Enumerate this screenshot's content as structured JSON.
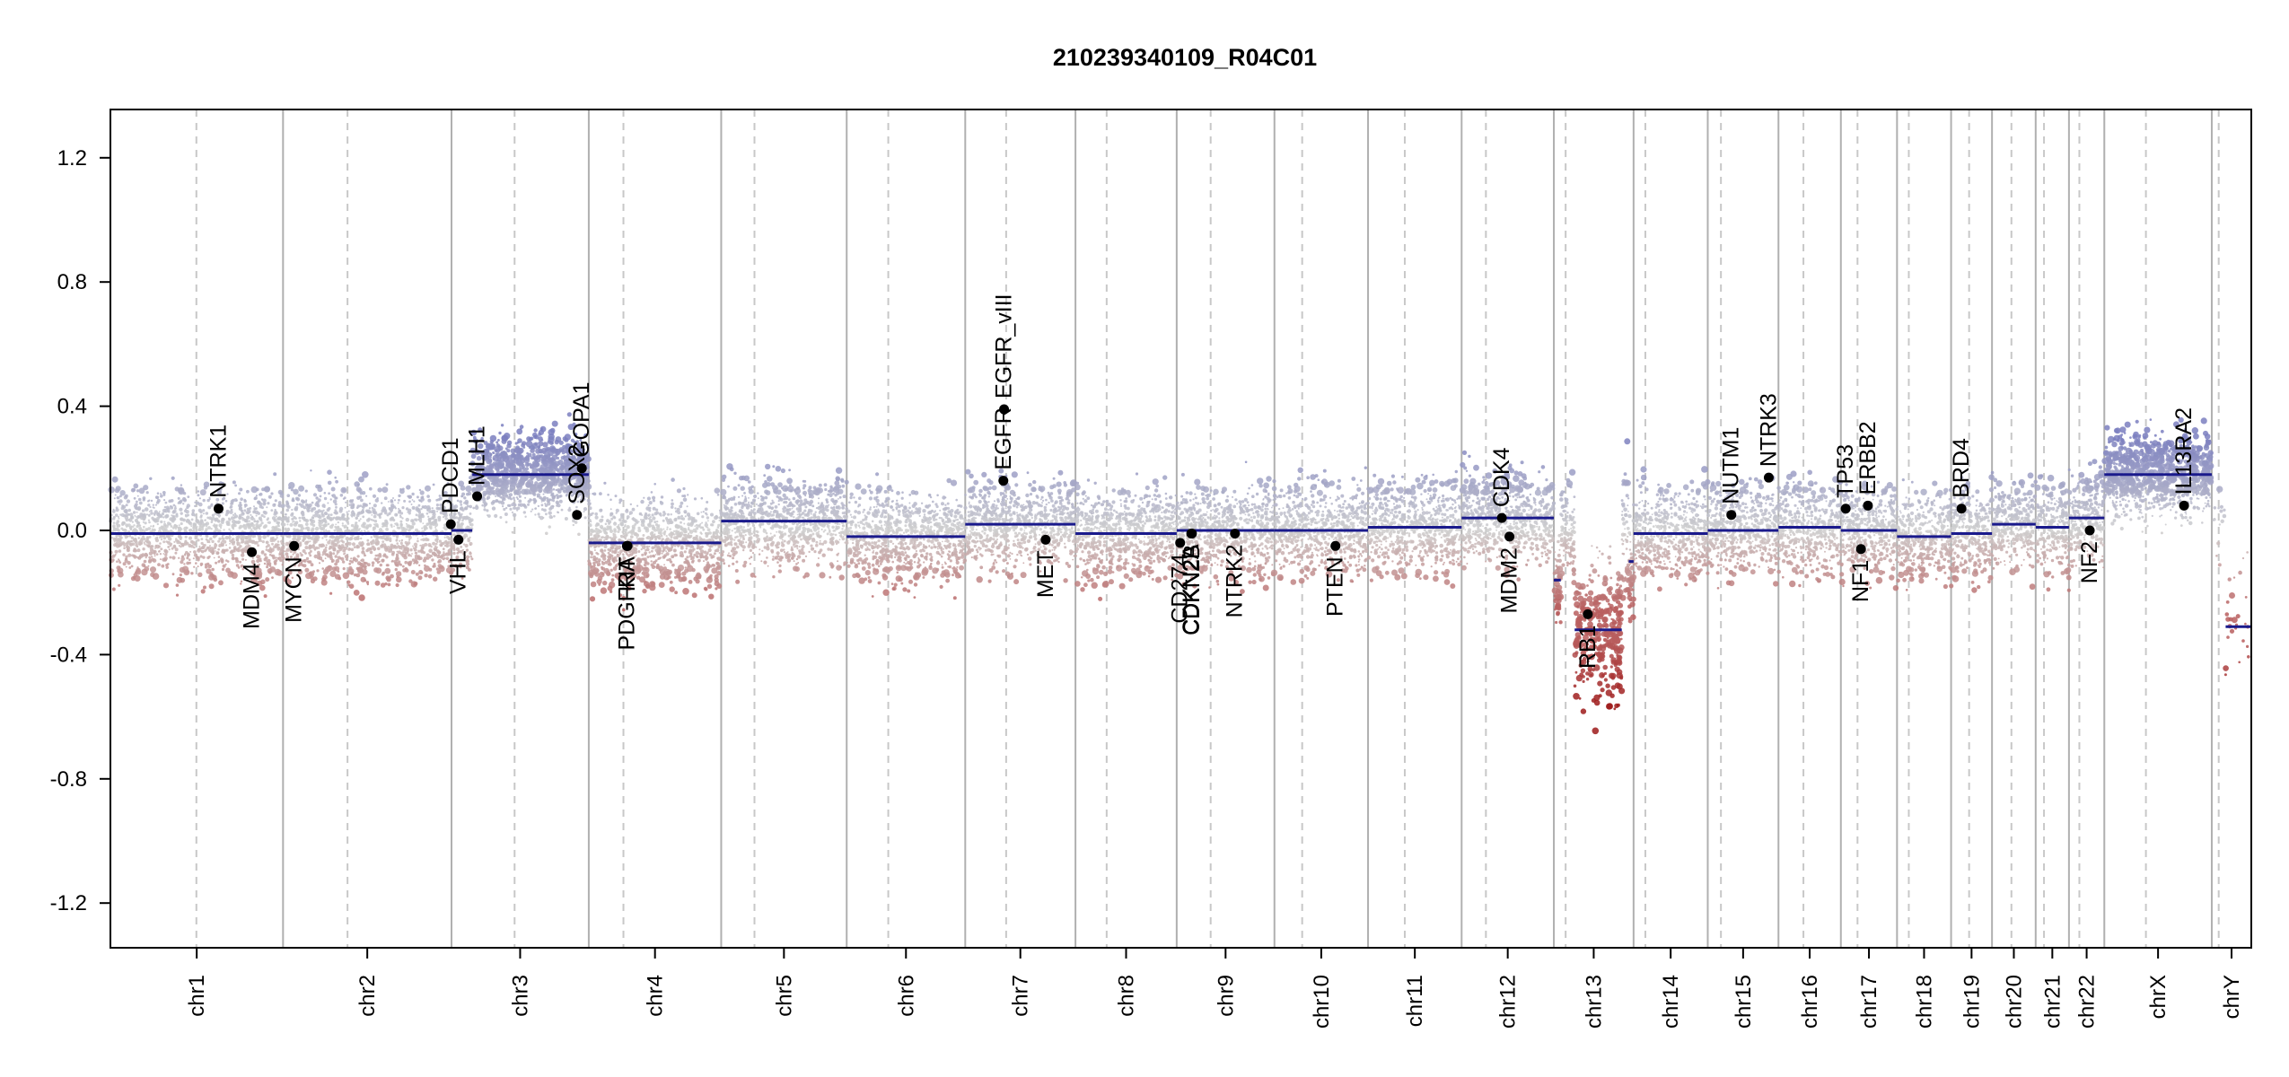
{
  "chart_data": {
    "type": "scatter",
    "title": "210239340109_R04C01",
    "xlabel": "",
    "ylabel": "",
    "ylim": [
      -1.4,
      1.35
    ],
    "yticks": [
      -1.2,
      -0.8,
      -0.4,
      0.0,
      0.4,
      0.8,
      1.2
    ],
    "ytick_labels": [
      "-1.2",
      "-0.8",
      "-0.4",
      "0.0",
      "0.4",
      "0.8",
      "1.2"
    ],
    "grid": "vertical chromosome boundaries (solid) and centromeres (dashed)",
    "colors": {
      "gain": "#7b7fbf",
      "loss": "#b85e5e",
      "neutral": "#cfcfcf",
      "segment": "#1a1a8c",
      "strong_loss": "#9e1a1a"
    },
    "chromosomes": [
      {
        "name": "chr1",
        "size": 249,
        "cent": 124,
        "seg": [
          {
            "start": 0,
            "end": 249,
            "v": -0.01
          }
        ]
      },
      {
        "name": "chr2",
        "size": 243,
        "cent": 93,
        "seg": [
          {
            "start": 0,
            "end": 243,
            "v": -0.01
          }
        ]
      },
      {
        "name": "chr3",
        "size": 198,
        "cent": 91,
        "seg": [
          {
            "start": 0,
            "end": 30,
            "v": 0.0
          },
          {
            "start": 30,
            "end": 198,
            "v": 0.18
          }
        ]
      },
      {
        "name": "chr4",
        "size": 191,
        "cent": 50,
        "seg": [
          {
            "start": 0,
            "end": 191,
            "v": -0.04
          }
        ]
      },
      {
        "name": "chr5",
        "size": 181,
        "cent": 48,
        "seg": [
          {
            "start": 0,
            "end": 181,
            "v": 0.03
          }
        ]
      },
      {
        "name": "chr6",
        "size": 171,
        "cent": 60,
        "seg": [
          {
            "start": 0,
            "end": 171,
            "v": -0.02
          }
        ]
      },
      {
        "name": "chr7",
        "size": 159,
        "cent": 59,
        "seg": [
          {
            "start": 0,
            "end": 159,
            "v": 0.02
          }
        ]
      },
      {
        "name": "chr8",
        "size": 146,
        "cent": 45,
        "seg": [
          {
            "start": 0,
            "end": 146,
            "v": -0.01
          }
        ]
      },
      {
        "name": "chr9",
        "size": 141,
        "cent": 49,
        "seg": [
          {
            "start": 0,
            "end": 141,
            "v": 0.0
          }
        ]
      },
      {
        "name": "chr10",
        "size": 135,
        "cent": 40,
        "seg": [
          {
            "start": 0,
            "end": 135,
            "v": 0.0
          }
        ]
      },
      {
        "name": "chr11",
        "size": 135,
        "cent": 53,
        "seg": [
          {
            "start": 0,
            "end": 135,
            "v": 0.01
          }
        ]
      },
      {
        "name": "chr12",
        "size": 133,
        "cent": 35,
        "seg": [
          {
            "start": 0,
            "end": 133,
            "v": 0.04
          }
        ]
      },
      {
        "name": "chr13",
        "size": 115,
        "cent": 17,
        "seg": [
          {
            "start": 0,
            "end": 10,
            "v": -0.16
          },
          {
            "start": 30,
            "end": 98,
            "v": -0.32
          },
          {
            "start": 108,
            "end": 115,
            "v": -0.1
          }
        ]
      },
      {
        "name": "chr14",
        "size": 107,
        "cent": 17,
        "seg": [
          {
            "start": 0,
            "end": 107,
            "v": -0.01
          }
        ]
      },
      {
        "name": "chr15",
        "size": 102,
        "cent": 19,
        "seg": [
          {
            "start": 0,
            "end": 102,
            "v": 0.0
          }
        ]
      },
      {
        "name": "chr16",
        "size": 90,
        "cent": 36,
        "seg": [
          {
            "start": 0,
            "end": 90,
            "v": 0.01
          }
        ]
      },
      {
        "name": "chr17",
        "size": 81,
        "cent": 24,
        "seg": [
          {
            "start": 0,
            "end": 81,
            "v": 0.0
          }
        ]
      },
      {
        "name": "chr18",
        "size": 78,
        "cent": 17,
        "seg": [
          {
            "start": 0,
            "end": 78,
            "v": -0.02
          }
        ]
      },
      {
        "name": "chr19",
        "size": 59,
        "cent": 26,
        "seg": [
          {
            "start": 0,
            "end": 59,
            "v": -0.01
          }
        ]
      },
      {
        "name": "chr20",
        "size": 63,
        "cent": 28,
        "seg": [
          {
            "start": 0,
            "end": 63,
            "v": 0.02
          }
        ]
      },
      {
        "name": "chr21",
        "size": 48,
        "cent": 12,
        "seg": [
          {
            "start": 0,
            "end": 48,
            "v": 0.01
          }
        ]
      },
      {
        "name": "chr22",
        "size": 51,
        "cent": 15,
        "seg": [
          {
            "start": 0,
            "end": 51,
            "v": 0.04
          }
        ]
      },
      {
        "name": "chrX",
        "size": 155,
        "cent": 60,
        "seg": [
          {
            "start": 0,
            "end": 155,
            "v": 0.18
          }
        ]
      },
      {
        "name": "chrY",
        "size": 57,
        "cent": 10,
        "seg": [
          {
            "start": 20,
            "end": 57,
            "v": -0.31
          }
        ]
      }
    ],
    "genes": [
      {
        "name": "NTRK1",
        "chr": "chr1",
        "pos": 156,
        "v": 0.07,
        "side": "up"
      },
      {
        "name": "MDM4",
        "chr": "chr1",
        "pos": 204,
        "v": -0.07,
        "side": "down"
      },
      {
        "name": "MYCN",
        "chr": "chr2",
        "pos": 16,
        "v": -0.05,
        "side": "down"
      },
      {
        "name": "PDCD1",
        "chr": "chr2",
        "pos": 242,
        "v": 0.02,
        "side": "up"
      },
      {
        "name": "VHL",
        "chr": "chr3",
        "pos": 10,
        "v": -0.03,
        "side": "down"
      },
      {
        "name": "MLH1",
        "chr": "chr3",
        "pos": 37,
        "v": 0.11,
        "side": "up"
      },
      {
        "name": "SOX2",
        "chr": "chr3",
        "pos": 181,
        "v": 0.05,
        "side": "up"
      },
      {
        "name": "GOPA1",
        "chr": "chr3",
        "pos": 188,
        "v": 0.2,
        "side": "up"
      },
      {
        "name": "PDGFRA",
        "chr": "chr4",
        "pos": 55,
        "v": -0.05,
        "side": "down"
      },
      {
        "name": "KIT",
        "chr": "chr4",
        "pos": 56,
        "v": -0.05,
        "side": "down"
      },
      {
        "name": "EGFR",
        "chr": "chr7",
        "pos": 55,
        "v": 0.16,
        "side": "up"
      },
      {
        "name": "EGFR_vIII",
        "chr": "chr7",
        "pos": 56,
        "v": 0.39,
        "side": "up"
      },
      {
        "name": "MET",
        "chr": "chr7",
        "pos": 116,
        "v": -0.03,
        "side": "down"
      },
      {
        "name": "CD274",
        "chr": "chr9",
        "pos": 5,
        "v": -0.04,
        "side": "down"
      },
      {
        "name": "CDKN2A",
        "chr": "chr9",
        "pos": 21,
        "v": -0.01,
        "side": "down"
      },
      {
        "name": "CDKN2B",
        "chr": "chr9",
        "pos": 22,
        "v": -0.01,
        "side": "down"
      },
      {
        "name": "NTRK2",
        "chr": "chr9",
        "pos": 84,
        "v": -0.01,
        "side": "down"
      },
      {
        "name": "PTEN",
        "chr": "chr10",
        "pos": 88,
        "v": -0.05,
        "side": "down"
      },
      {
        "name": "CDK4",
        "chr": "chr12",
        "pos": 58,
        "v": 0.04,
        "side": "up"
      },
      {
        "name": "MDM2",
        "chr": "chr12",
        "pos": 69,
        "v": -0.02,
        "side": "down"
      },
      {
        "name": "RB1",
        "chr": "chr13",
        "pos": 49,
        "v": -0.27,
        "side": "down"
      },
      {
        "name": "NUTM1",
        "chr": "chr15",
        "pos": 34,
        "v": 0.05,
        "side": "up"
      },
      {
        "name": "NTRK3",
        "chr": "chr15",
        "pos": 88,
        "v": 0.17,
        "side": "up"
      },
      {
        "name": "TP53",
        "chr": "chr17",
        "pos": 7,
        "v": 0.07,
        "side": "up"
      },
      {
        "name": "NF1",
        "chr": "chr17",
        "pos": 29,
        "v": -0.06,
        "side": "down"
      },
      {
        "name": "ERBB2",
        "chr": "chr17",
        "pos": 39,
        "v": 0.08,
        "side": "up"
      },
      {
        "name": "BRD4",
        "chr": "chr19",
        "pos": 15,
        "v": 0.07,
        "side": "up"
      },
      {
        "name": "NF2",
        "chr": "chr22",
        "pos": 30,
        "v": 0.0,
        "side": "down"
      },
      {
        "name": "IL13RA2",
        "chr": "chrX",
        "pos": 115,
        "v": 0.08,
        "side": "up"
      }
    ]
  }
}
